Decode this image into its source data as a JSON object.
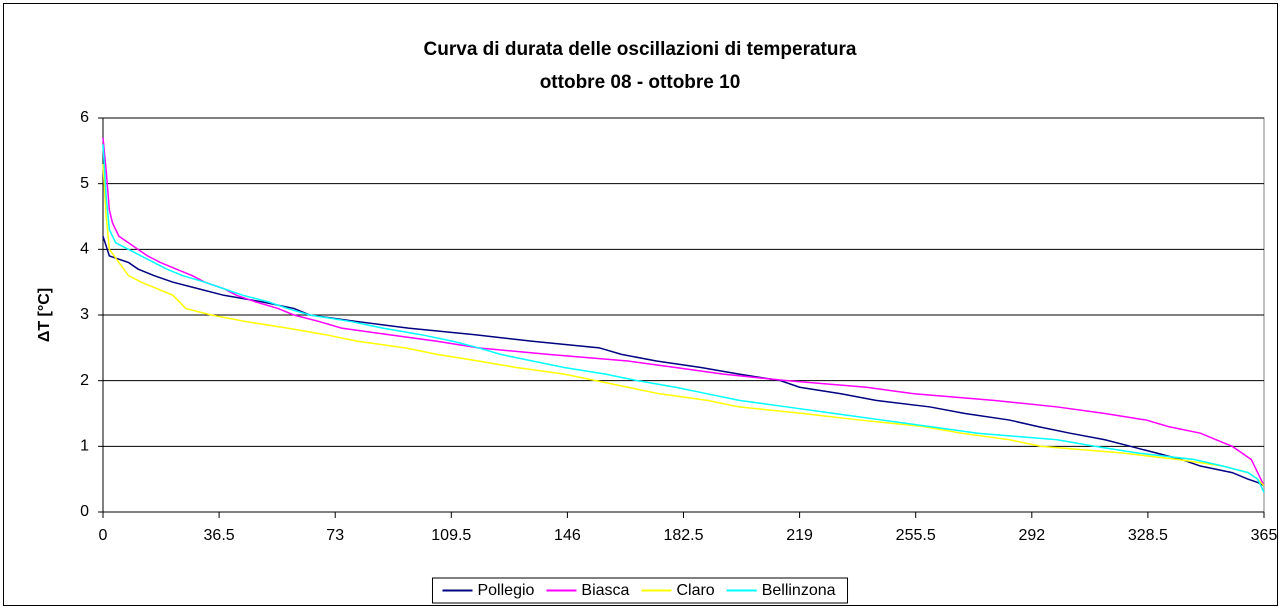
{
  "chart_data": {
    "type": "line",
    "title": "Curva di durata delle oscillazioni di temperatura",
    "subtitle": "ottobre 08 - ottobre 10",
    "y_label": "ΔT [°C]",
    "xlim": [
      0,
      365
    ],
    "xticks": [
      0,
      36.5,
      73,
      109.5,
      146,
      182.5,
      219,
      255.5,
      292,
      328.5,
      365
    ],
    "ylim": [
      0,
      6
    ],
    "yticks": [
      0,
      1,
      2,
      3,
      4,
      5,
      6
    ],
    "grid": true,
    "legend": "bottom",
    "series": [
      {
        "name": "Pollegio",
        "color": "#000080",
        "x": [
          0,
          2,
          8,
          11,
          16,
          22,
          30,
          38,
          50,
          60,
          65,
          80,
          96,
          117,
          135,
          156,
          163,
          174,
          188,
          200,
          213,
          219,
          232,
          243,
          260,
          271,
          285,
          294,
          304,
          315,
          323,
          331,
          339,
          345,
          355,
          360,
          363,
          365
        ],
        "values": [
          4.2,
          3.9,
          3.8,
          3.7,
          3.6,
          3.5,
          3.4,
          3.3,
          3.2,
          3.1,
          3.0,
          2.9,
          2.8,
          2.7,
          2.6,
          2.5,
          2.4,
          2.3,
          2.2,
          2.1,
          2.0,
          1.9,
          1.8,
          1.7,
          1.6,
          1.5,
          1.4,
          1.3,
          1.2,
          1.1,
          1.0,
          0.9,
          0.8,
          0.7,
          0.6,
          0.5,
          0.45,
          0.4
        ]
      },
      {
        "name": "Biasca",
        "color": "#ff00ff",
        "x": [
          0,
          1,
          2,
          3,
          5,
          8,
          11,
          14,
          18,
          23,
          28,
          32,
          38,
          42,
          48,
          55,
          60,
          68,
          75,
          90,
          105,
          118,
          140,
          165,
          180,
          195,
          215,
          240,
          255,
          280,
          300,
          315,
          328,
          335,
          345,
          350,
          355,
          358,
          361,
          363,
          365
        ],
        "values": [
          5.7,
          5.2,
          4.6,
          4.4,
          4.2,
          4.1,
          4.0,
          3.9,
          3.8,
          3.7,
          3.6,
          3.5,
          3.4,
          3.3,
          3.2,
          3.1,
          3.0,
          2.9,
          2.8,
          2.7,
          2.6,
          2.5,
          2.4,
          2.3,
          2.2,
          2.1,
          2.0,
          1.9,
          1.8,
          1.7,
          1.6,
          1.5,
          1.4,
          1.3,
          1.2,
          1.1,
          1.0,
          0.9,
          0.8,
          0.6,
          0.4
        ]
      },
      {
        "name": "Claro",
        "color": "#ffff00",
        "x": [
          0,
          1,
          2,
          5,
          8,
          12,
          17,
          22,
          26,
          34,
          45,
          58,
          70,
          80,
          95,
          105,
          118,
          130,
          145,
          155,
          165,
          175,
          190,
          200,
          220,
          238,
          258,
          270,
          285,
          295,
          320,
          338,
          352,
          360,
          363,
          365
        ],
        "values": [
          5.3,
          4.5,
          4.0,
          3.8,
          3.6,
          3.5,
          3.4,
          3.3,
          3.1,
          3.0,
          2.9,
          2.8,
          2.7,
          2.6,
          2.5,
          2.4,
          2.3,
          2.2,
          2.1,
          2.0,
          1.9,
          1.8,
          1.7,
          1.6,
          1.5,
          1.4,
          1.3,
          1.2,
          1.1,
          1.0,
          0.9,
          0.8,
          0.7,
          0.6,
          0.5,
          0.4
        ]
      },
      {
        "name": "Bellinzona",
        "color": "#00ffff",
        "x": [
          0,
          1,
          2,
          4,
          8,
          12,
          16,
          20,
          25,
          32,
          38,
          44,
          52,
          58,
          65,
          78,
          88,
          100,
          110,
          118,
          125,
          135,
          145,
          158,
          168,
          180,
          190,
          200,
          215,
          230,
          245,
          260,
          275,
          300,
          312,
          325,
          343,
          352,
          360,
          363,
          365
        ],
        "values": [
          5.6,
          4.8,
          4.3,
          4.1,
          4.0,
          3.9,
          3.8,
          3.7,
          3.6,
          3.5,
          3.4,
          3.3,
          3.2,
          3.1,
          3.0,
          2.9,
          2.8,
          2.7,
          2.6,
          2.5,
          2.4,
          2.3,
          2.2,
          2.1,
          2.0,
          1.9,
          1.8,
          1.7,
          1.6,
          1.5,
          1.4,
          1.3,
          1.2,
          1.1,
          1.0,
          0.9,
          0.8,
          0.7,
          0.6,
          0.5,
          0.3
        ]
      }
    ]
  }
}
